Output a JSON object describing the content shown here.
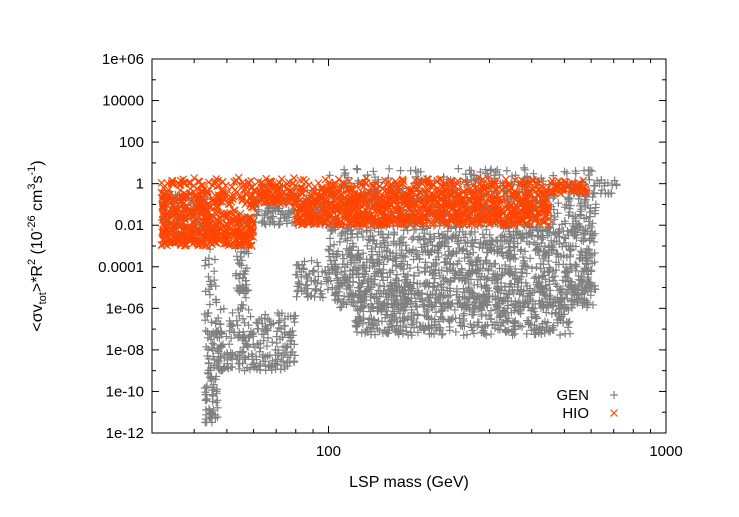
{
  "chart_data": {
    "type": "scatter",
    "title": "",
    "xlabel": "LSP mass (GeV)",
    "ylabel_parts": {
      "a": "<σv",
      "sub": "tot",
      "b": ">*R",
      "sup2": "2",
      "c": " (10",
      "supexp": "-26",
      "d": " cm",
      "sup3": "3",
      "e": "s",
      "supm1": "-1",
      "f": ")"
    },
    "xscale": "log",
    "yscale": "log",
    "xlim": [
      30,
      1000
    ],
    "ylim": [
      1e-12,
      1000000
    ],
    "x_ticks": [
      {
        "value": 100,
        "label": "100"
      },
      {
        "value": 1000,
        "label": "1000"
      }
    ],
    "y_ticks": [
      {
        "value": 1000000,
        "label": "1e+06"
      },
      {
        "value": 10000,
        "label": "10000"
      },
      {
        "value": 100,
        "label": "100"
      },
      {
        "value": 1,
        "label": "1"
      },
      {
        "value": 0.01,
        "label": "0.01"
      },
      {
        "value": 0.0001,
        "label": "0.0001"
      },
      {
        "value": 1e-06,
        "label": "1e-06"
      },
      {
        "value": 1e-08,
        "label": "1e-08"
      },
      {
        "value": 1e-10,
        "label": "1e-10"
      },
      {
        "value": 1e-12,
        "label": "1e-12"
      }
    ],
    "legend_position": "bottom-right",
    "series": [
      {
        "name": "GEN",
        "marker": "+",
        "color": "#808080",
        "approx_points": 3000,
        "regions": [
          {
            "x": [
              100,
              620
            ],
            "log10y": [
              -6.0,
              0.8
            ]
          },
          {
            "x": [
              120,
              520
            ],
            "log10y": [
              -7.3,
              -5.5
            ]
          },
          {
            "x": [
              32,
              45
            ],
            "log10y": [
              -2.8,
              -0.3
            ]
          },
          {
            "x": [
              43,
              47
            ],
            "log10y": [
              -11.5,
              -3.0
            ]
          },
          {
            "x": [
              53,
              58
            ],
            "log10y": [
              -6.0,
              -1.5
            ]
          },
          {
            "x": [
              47,
              80
            ],
            "log10y": [
              -9.0,
              -6.0
            ]
          },
          {
            "x": [
              80,
              100
            ],
            "log10y": [
              -5.5,
              -3.5
            ]
          },
          {
            "x": [
              60,
              100
            ],
            "log10y": [
              -2.0,
              0.0
            ]
          },
          {
            "x": [
              520,
              730
            ],
            "log10y": [
              -0.5,
              0.2
            ]
          }
        ],
        "x_range": [
          33,
          730
        ],
        "log10y_range": [
          -11.5,
          0.8
        ]
      },
      {
        "name": "HIO",
        "marker": "x",
        "color": "#ff4500",
        "approx_points": 1800,
        "regions": [
          {
            "x": [
              80,
              450
            ],
            "log10y": [
              -2.0,
              0.3
            ]
          },
          {
            "x": [
              32,
              60
            ],
            "log10y": [
              -3.0,
              0.3
            ]
          },
          {
            "x": [
              60,
              80
            ],
            "log10y": [
              -1.0,
              0.3
            ]
          },
          {
            "x": [
              450,
              580
            ],
            "log10y": [
              -0.5,
              0.2
            ]
          }
        ],
        "x_range": [
          32,
          580
        ],
        "log10y_range": [
          -3.0,
          0.3
        ]
      }
    ]
  }
}
